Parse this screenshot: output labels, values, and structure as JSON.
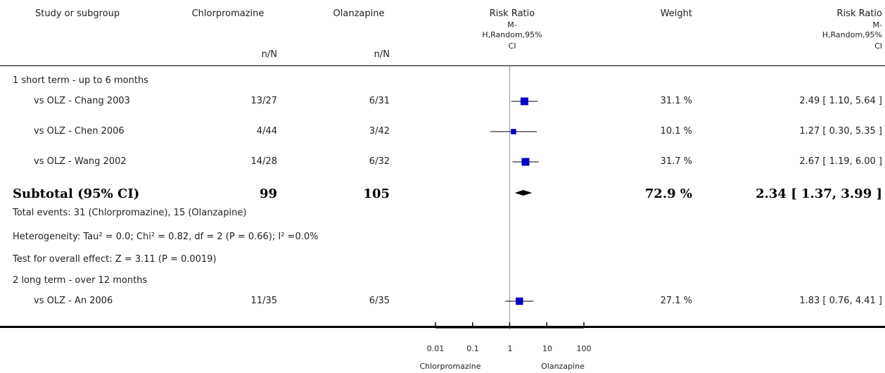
{
  "header": {
    "study": "Study or subgroup",
    "exp": "Chlorpromazine",
    "ctrl": "Olanzapine",
    "rr_plot_title": "Risk Ratio",
    "rr_plot_m": "M-",
    "rr_plot_method": "H,Random,95%",
    "rr_plot_ci": "CI",
    "weight": "Weight",
    "rr_title": "Risk Ratio",
    "rr_m": "M-",
    "rr_method": "H,Random,95%",
    "rr_ci": "CI",
    "exp_nN": "n/N",
    "ctrl_nN": "n/N"
  },
  "groups": [
    {
      "title": "1 short term - up to 6 months",
      "studies": [
        {
          "name": "vs OLZ - Chang 2003",
          "exp": "13/27",
          "ctrl": "6/31",
          "weight": "31.1 %",
          "ci_text": "2.49 [ 1.10, 5.64 ]"
        },
        {
          "name": "vs OLZ - Chen 2006",
          "exp": "4/44",
          "ctrl": "3/42",
          "weight": "10.1 %",
          "ci_text": "1.27 [ 0.30, 5.35 ]"
        },
        {
          "name": "vs OLZ - Wang 2002",
          "exp": "14/28",
          "ctrl": "6/32",
          "weight": "31.7 %",
          "ci_text": "2.67 [ 1.19, 6.00 ]"
        }
      ],
      "subtotal": {
        "label": "Subtotal (95% CI)",
        "exp": "99",
        "ctrl": "105",
        "weight": "72.9 %",
        "ci_text": "2.34 [ 1.37, 3.99 ]"
      },
      "notes": [
        "Total events: 31 (Chlorpromazine), 15 (Olanzapine)",
        "Heterogeneity: Tau² = 0.0; Chi² = 0.82, df = 2 (P = 0.66); I² =0.0%",
        "Test for overall effect: Z = 3.11 (P = 0.0019)"
      ]
    },
    {
      "title": "2 long term - over 12 months",
      "studies": [
        {
          "name": "vs OLZ - An 2006",
          "exp": "11/35",
          "ctrl": "6/35",
          "weight": "27.1 %",
          "ci_text": "1.83 [ 0.76, 4.41 ]"
        }
      ]
    }
  ],
  "axis": {
    "ticks": [
      "0.01",
      "0.1",
      "1",
      "10",
      "100"
    ],
    "favours_left": "Chlorpromazine",
    "favours_right": "Olanzapine"
  },
  "chart_data": {
    "type": "forest",
    "scale": "log",
    "xlim": [
      0.01,
      100
    ],
    "ticks": [
      0.01,
      0.1,
      1,
      10,
      100
    ],
    "points": [
      {
        "study": "vs OLZ - Chang 2003",
        "rr": 2.49,
        "lo": 1.1,
        "hi": 5.64,
        "weight": 31.1
      },
      {
        "study": "vs OLZ - Chen 2006",
        "rr": 1.27,
        "lo": 0.3,
        "hi": 5.35,
        "weight": 10.1
      },
      {
        "study": "vs OLZ - Wang 2002",
        "rr": 2.67,
        "lo": 1.19,
        "hi": 6.0,
        "weight": 31.7
      },
      {
        "study": "vs OLZ - An 2006",
        "rr": 1.83,
        "lo": 0.76,
        "hi": 4.41,
        "weight": 27.1
      }
    ],
    "subtotal": {
      "rr": 2.34,
      "lo": 1.37,
      "hi": 3.99
    },
    "colors": {
      "box": "#0000cc",
      "line": "#000000",
      "null_line": "#999999"
    }
  }
}
